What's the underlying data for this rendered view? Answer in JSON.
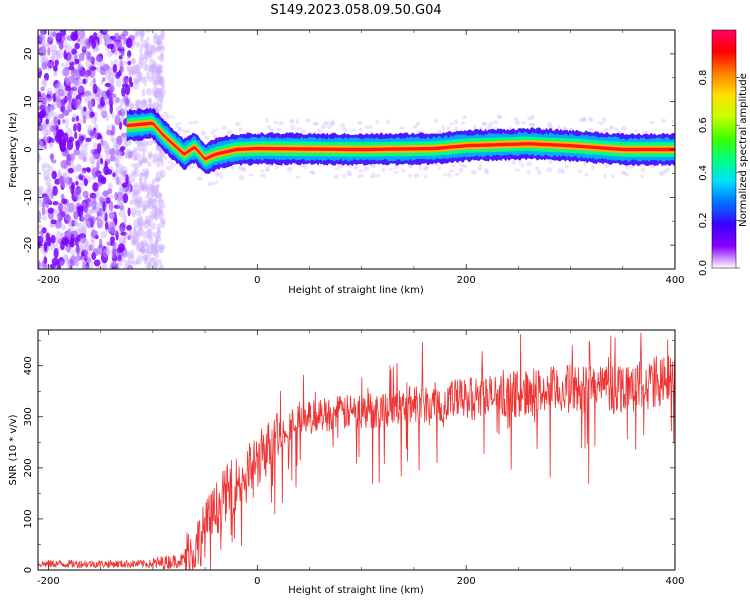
{
  "title": "S149.2023.058.09.50.G04",
  "chart_data": [
    {
      "type": "heatmap",
      "xlabel": "Height of straight line (km)",
      "ylabel": "Frequency (Hz)",
      "xlim": [
        -210,
        400
      ],
      "ylim": [
        -25,
        25
      ],
      "xticks": [
        -200,
        0,
        200,
        400
      ],
      "yticks": [
        -20,
        -10,
        0,
        10,
        20
      ],
      "colorbar": {
        "label": "Normalized spectral amplitude",
        "range": [
          0,
          1
        ],
        "ticks": [
          "0.0",
          "0.2",
          "0.4",
          "0.6",
          "0.8"
        ],
        "colors": [
          "#ffffff",
          "#8a00ff",
          "#3a00ff",
          "#0070ff",
          "#00e0ff",
          "#00ff80",
          "#40ff00",
          "#c8ff00",
          "#ffe000",
          "#ff8000",
          "#ff0000",
          "#ff0066"
        ]
      },
      "ridge": {
        "description_points_x": [
          -125,
          -100,
          -90,
          -80,
          -70,
          -60,
          -50,
          -40,
          -20,
          0,
          100,
          170,
          200,
          230,
          260,
          300,
          350,
          400
        ],
        "frequency_hz": [
          5,
          5.5,
          3,
          1,
          -1,
          0.5,
          -2,
          -1,
          0,
          0.2,
          0,
          0.2,
          0.8,
          1,
          1.2,
          0.8,
          0,
          0
        ]
      },
      "noise_region_x": [
        -210,
        -100
      ]
    },
    {
      "type": "line",
      "xlabel": "Height of straight line (km)",
      "ylabel": "SNR (10 * v/v)",
      "xlim": [
        -210,
        400
      ],
      "ylim": [
        0,
        470
      ],
      "xticks": [
        -200,
        0,
        200,
        400
      ],
      "yticks": [
        0,
        100,
        200,
        300,
        400
      ],
      "color": "#ee3333",
      "trend": {
        "x": [
          -210,
          -100,
          -70,
          -55,
          -45,
          -30,
          -10,
          10,
          30,
          60,
          100,
          150,
          200,
          250,
          300,
          350,
          400
        ],
        "y": [
          12,
          12,
          20,
          60,
          100,
          150,
          190,
          240,
          285,
          305,
          310,
          325,
          335,
          345,
          355,
          360,
          370
        ]
      }
    }
  ]
}
